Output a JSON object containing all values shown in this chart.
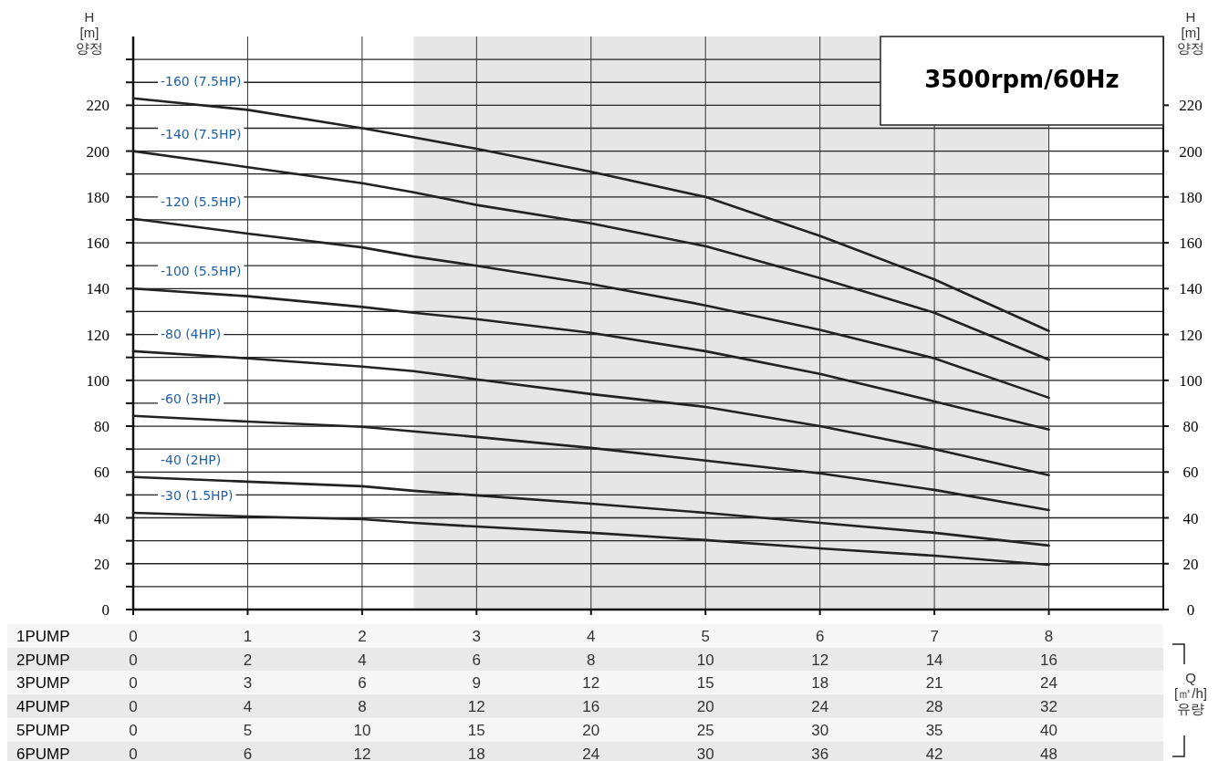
{
  "chart_data": {
    "type": "line",
    "title": "3500rpm/60Hz",
    "ylabel": "H [m] 양정",
    "y2label": "H [m] 양정",
    "xlabel": "1PUMP",
    "x2label": "2PUMP",
    "annotations": [
      "Q [㎥/h] 유량",
      "3PUMP",
      "0",
      "3",
      "6",
      "9",
      "12",
      "15",
      "18",
      "21",
      "24",
      "4PUMP",
      "0",
      "4",
      "8",
      "12",
      "16",
      "20",
      "24",
      "28",
      "32",
      "5PUMP",
      "0",
      "5",
      "10",
      "15",
      "20",
      "25",
      "30",
      "35",
      "40",
      "6PUMP",
      "0",
      "6",
      "12",
      "18",
      "24",
      "30",
      "36",
      "42",
      "48"
    ],
    "x": [
      0,
      1,
      2,
      2.45,
      3,
      4,
      5,
      6,
      7,
      8
    ],
    "series": [
      {
        "name": "-160 (7.5HP)",
        "color": "#222222",
        "values": [
          223,
          218,
          210,
          206,
          201,
          191,
          180,
          163,
          144,
          121.5
        ]
      },
      {
        "name": "-140 (7.5HP)",
        "color": "#222222",
        "values": [
          200,
          193,
          186,
          182,
          176.5,
          168.5,
          158.5,
          144.6,
          129.5,
          109
        ]
      },
      {
        "name": "-120 (5.5HP)",
        "color": "#222222",
        "values": [
          170.5,
          164,
          158,
          154,
          150,
          142,
          132.7,
          122,
          109.6,
          92.4
        ]
      },
      {
        "name": "-100 (5.5HP)",
        "color": "#222222",
        "values": [
          140,
          136.7,
          132,
          129.5,
          126.7,
          120.7,
          112.7,
          102.8,
          90.8,
          78.5
        ]
      },
      {
        "name": "-80 (4HP)",
        "color": "#222222",
        "values": [
          112.7,
          109.6,
          106,
          104,
          100.4,
          94,
          88.4,
          80,
          70,
          58.6
        ]
      },
      {
        "name": "-60 (3HP)",
        "color": "#222222",
        "values": [
          84.5,
          82,
          79.7,
          77.7,
          75.3,
          70.5,
          65,
          59.4,
          52.2,
          43.4
        ]
      },
      {
        "name": "-40 (2HP)",
        "color": "#222222",
        "values": [
          57.8,
          55.8,
          53.8,
          51.8,
          49.8,
          46.2,
          42.2,
          37.8,
          33.5,
          27.9
        ]
      },
      {
        "name": "-30 (1.5HP)",
        "color": "#222222",
        "values": [
          42.2,
          40.6,
          39.4,
          37.8,
          36.2,
          33.5,
          30.3,
          26.7,
          23.5,
          19.5
        ]
      }
    ],
    "xlim": [
      0,
      9
    ],
    "xticks": [
      0,
      1,
      2,
      3,
      4,
      5,
      6,
      7,
      8
    ],
    "x2lim": [
      0,
      18
    ],
    "x2ticks": [
      0,
      2,
      4,
      6,
      8,
      10,
      12,
      14,
      16
    ],
    "ylim": [
      0,
      250
    ],
    "yticks": [
      0,
      {
        "value": 10,
        "label": null
      },
      20,
      {
        "value": 30,
        "label": null
      },
      40,
      {
        "value": 50,
        "label": null
      },
      60,
      {
        "value": 70,
        "label": null
      },
      80,
      {
        "value": 90,
        "label": null
      },
      100,
      {
        "value": 110,
        "label": null
      },
      120,
      {
        "value": 130,
        "label": null
      },
      140,
      {
        "value": 150,
        "label": null
      },
      160,
      {
        "value": 170,
        "label": null
      },
      180,
      {
        "value": 190,
        "label": null
      },
      200,
      {
        "value": 210,
        "label": null
      },
      220,
      {
        "value": 230,
        "label": null
      },
      {
        "value": 240,
        "label": null
      }
    ],
    "y2lim": [
      0,
      250
    ],
    "y2ticks": [
      0,
      20,
      40,
      60,
      80,
      100,
      120,
      140,
      160,
      180,
      200,
      220
    ],
    "bands": [
      {
        "axis": "x",
        "from": 2.45,
        "to": 8,
        "color": "#e6e6e6"
      }
    ],
    "grid": true,
    "legend": false
  }
}
